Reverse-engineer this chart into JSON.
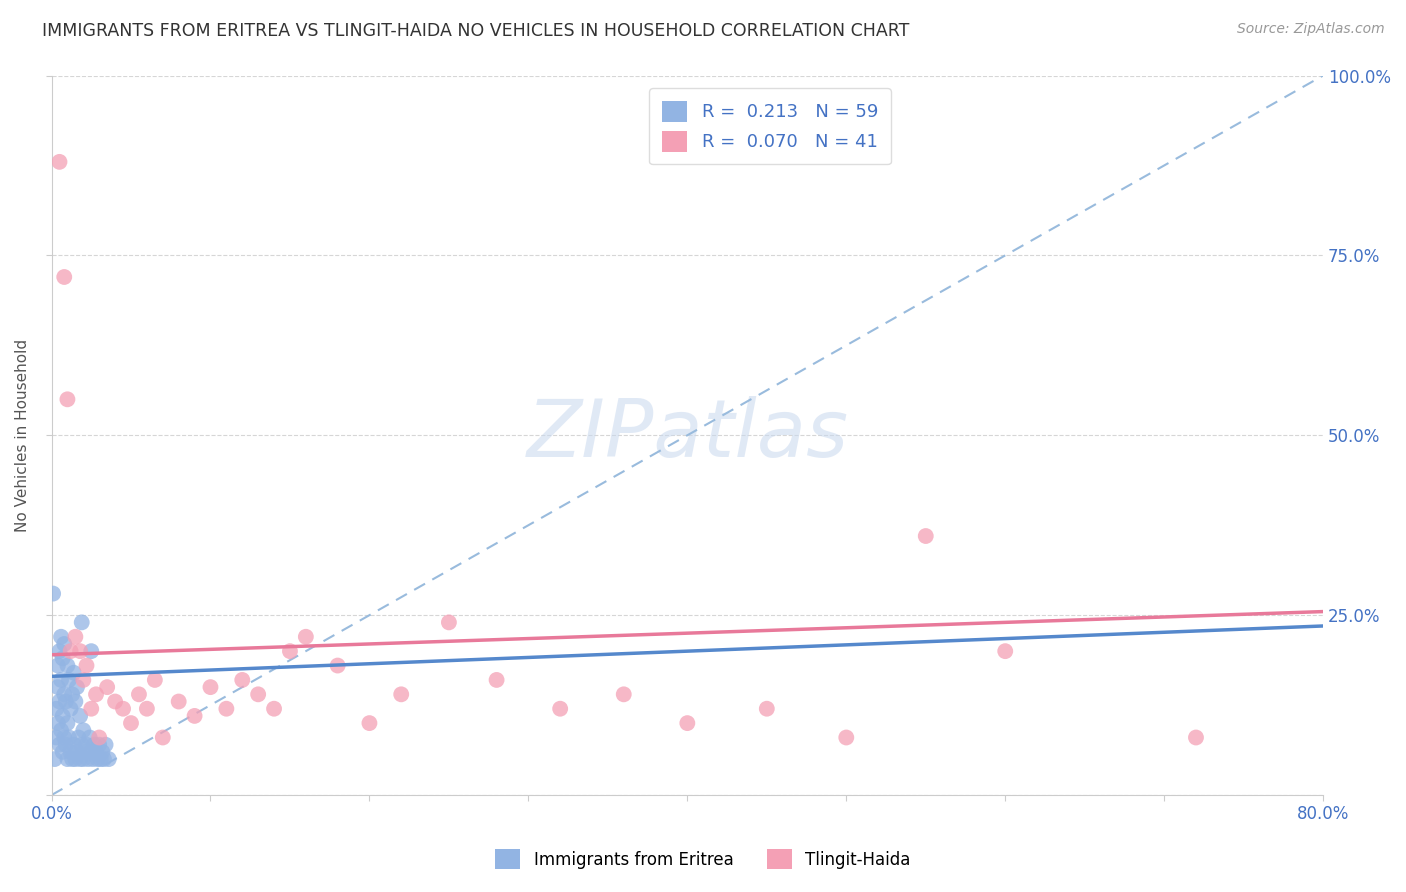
{
  "title": "IMMIGRANTS FROM ERITREA VS TLINGIT-HAIDA NO VEHICLES IN HOUSEHOLD CORRELATION CHART",
  "source": "Source: ZipAtlas.com",
  "ylabel": "No Vehicles in Household",
  "watermark": "ZIPatlas",
  "xlim": [
    0.0,
    0.8
  ],
  "ylim": [
    0.0,
    1.0
  ],
  "blue_color": "#92b4e3",
  "pink_color": "#f4a0b5",
  "blue_line_color": "#5588cc",
  "pink_line_color": "#e8799a",
  "dashed_line_color": "#99bbdd",
  "tick_color": "#4472c4",
  "label_color": "#555555",
  "R_blue": 0.213,
  "N_blue": 59,
  "R_pink": 0.07,
  "N_pink": 41,
  "blue_line_x0": 0.0,
  "blue_line_y0": 0.165,
  "blue_line_x1": 0.8,
  "blue_line_y1": 0.235,
  "pink_line_x0": 0.0,
  "pink_line_y0": 0.195,
  "pink_line_x1": 0.8,
  "pink_line_y1": 0.255,
  "blue_scatter_x": [
    0.001,
    0.002,
    0.003,
    0.003,
    0.004,
    0.004,
    0.004,
    0.005,
    0.005,
    0.005,
    0.006,
    0.006,
    0.006,
    0.007,
    0.007,
    0.007,
    0.008,
    0.008,
    0.008,
    0.009,
    0.009,
    0.01,
    0.01,
    0.01,
    0.011,
    0.011,
    0.012,
    0.012,
    0.013,
    0.013,
    0.014,
    0.014,
    0.015,
    0.015,
    0.016,
    0.016,
    0.017,
    0.018,
    0.018,
    0.019,
    0.02,
    0.02,
    0.021,
    0.022,
    0.023,
    0.024,
    0.025,
    0.026,
    0.027,
    0.028,
    0.029,
    0.03,
    0.031,
    0.032,
    0.033,
    0.034,
    0.036,
    0.019,
    0.025
  ],
  "blue_scatter_y": [
    0.28,
    0.05,
    0.08,
    0.12,
    0.1,
    0.15,
    0.18,
    0.07,
    0.13,
    0.2,
    0.09,
    0.16,
    0.22,
    0.06,
    0.11,
    0.19,
    0.08,
    0.14,
    0.21,
    0.07,
    0.13,
    0.05,
    0.1,
    0.18,
    0.08,
    0.16,
    0.06,
    0.12,
    0.05,
    0.14,
    0.07,
    0.17,
    0.05,
    0.13,
    0.06,
    0.15,
    0.08,
    0.05,
    0.11,
    0.07,
    0.05,
    0.09,
    0.06,
    0.07,
    0.05,
    0.08,
    0.06,
    0.05,
    0.07,
    0.06,
    0.05,
    0.07,
    0.05,
    0.06,
    0.05,
    0.07,
    0.05,
    0.24,
    0.2
  ],
  "pink_scatter_x": [
    0.005,
    0.008,
    0.01,
    0.012,
    0.015,
    0.018,
    0.02,
    0.022,
    0.025,
    0.028,
    0.03,
    0.035,
    0.04,
    0.045,
    0.05,
    0.055,
    0.06,
    0.065,
    0.07,
    0.08,
    0.09,
    0.1,
    0.11,
    0.12,
    0.13,
    0.14,
    0.15,
    0.16,
    0.18,
    0.2,
    0.22,
    0.25,
    0.28,
    0.32,
    0.36,
    0.4,
    0.45,
    0.5,
    0.55,
    0.6,
    0.72
  ],
  "pink_scatter_y": [
    0.88,
    0.72,
    0.55,
    0.2,
    0.22,
    0.2,
    0.16,
    0.18,
    0.12,
    0.14,
    0.08,
    0.15,
    0.13,
    0.12,
    0.1,
    0.14,
    0.12,
    0.16,
    0.08,
    0.13,
    0.11,
    0.15,
    0.12,
    0.16,
    0.14,
    0.12,
    0.2,
    0.22,
    0.18,
    0.1,
    0.14,
    0.24,
    0.16,
    0.12,
    0.14,
    0.1,
    0.12,
    0.08,
    0.36,
    0.2,
    0.08
  ]
}
